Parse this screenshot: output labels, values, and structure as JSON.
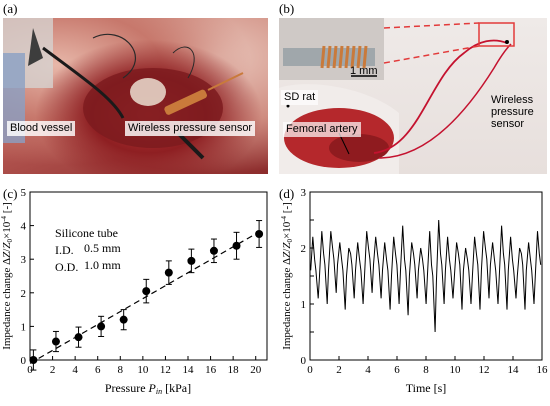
{
  "figure": {
    "panel_a": {
      "label": "(a)",
      "blood_vessel": "Blood vessel",
      "sensor": "Wireless pressure sensor"
    },
    "panel_b": {
      "label": "(b)",
      "scale": "1 mm",
      "rat": "SD rat",
      "artery": "Femoral artery",
      "sensor_line1": "Wireless",
      "sensor_line2": "pressure",
      "sensor_line3": "sensor"
    },
    "panel_c": {
      "label": "(c)",
      "tube": "Silicone tube",
      "id_label": "I.D.",
      "id_value": "0.5 mm",
      "od_label": "O.D.",
      "od_value": "1.0 mm"
    },
    "panel_d": {
      "label": "(d)"
    }
  },
  "colors": {
    "tissue_red": "#a7282b",
    "wire_red": "#c4122f",
    "copper": "#c97a3b"
  },
  "chart_data": [
    {
      "type": "scatter",
      "xlabel": "Pressure P_in [kPa]",
      "ylabel": "Impedance change ΔZ/Z0×10⁻⁴ [-]",
      "xlim": [
        0,
        21
      ],
      "ylim": [
        0,
        5
      ],
      "xticks": [
        0,
        2,
        4,
        6,
        8,
        10,
        12,
        14,
        16,
        18,
        20
      ],
      "yticks": [
        0,
        1,
        2,
        3,
        4,
        5
      ],
      "x": [
        0.3,
        2.3,
        4.3,
        6.3,
        8.3,
        10.3,
        12.3,
        14.3,
        16.3,
        18.3,
        20.3
      ],
      "y": [
        0.0,
        0.55,
        0.68,
        1.0,
        1.2,
        2.05,
        2.6,
        2.95,
        3.25,
        3.4,
        3.75
      ],
      "err": [
        0.3,
        0.3,
        0.3,
        0.3,
        0.3,
        0.35,
        0.35,
        0.35,
        0.35,
        0.4,
        0.4
      ],
      "fit": {
        "x": [
          0,
          20.5
        ],
        "y": [
          -0.1,
          3.85
        ]
      },
      "grid": false
    },
    {
      "type": "line",
      "xlabel": "Time [s]",
      "ylabel": "Impedance change ΔZ/Z0×10⁻⁴ [-]",
      "xlim": [
        0,
        16
      ],
      "ylim": [
        0,
        3
      ],
      "xticks": [
        0,
        2,
        4,
        6,
        8,
        10,
        12,
        14,
        16
      ],
      "yticks": [
        0,
        0.5,
        1,
        1.5,
        2,
        2.5,
        3
      ],
      "yticklabels": [
        "0",
        "",
        "1",
        "",
        "2",
        "",
        "3"
      ],
      "period_s": 0.62,
      "peak_values": [
        2.2,
        2.3,
        2.3,
        2.1,
        2.0,
        2.1,
        2.3,
        2.2,
        2.1,
        2.2,
        2.4,
        2.1,
        2.0,
        2.3,
        2.5,
        2.2,
        2.1,
        2.0,
        2.2,
        2.3,
        2.1,
        2.4,
        2.2,
        2.0,
        2.1,
        2.3
      ],
      "trough_values": [
        1.1,
        1.0,
        1.2,
        0.9,
        1.1,
        1.0,
        1.2,
        1.1,
        0.9,
        1.0,
        0.8,
        1.1,
        1.0,
        0.5,
        1.0,
        1.1,
        0.9,
        1.0,
        0.9,
        1.1,
        1.0,
        0.9,
        1.1,
        0.9,
        1.0,
        1.1
      ],
      "mid_values": [
        1.6,
        1.7,
        1.8,
        1.6,
        1.7,
        1.6,
        1.8,
        1.7,
        1.6,
        1.7,
        1.6,
        1.7,
        1.6,
        1.5,
        1.7,
        1.6,
        1.7,
        1.6,
        1.7,
        1.8,
        1.6,
        1.7,
        1.6,
        1.7,
        1.6,
        1.7
      ],
      "grid": false
    }
  ]
}
